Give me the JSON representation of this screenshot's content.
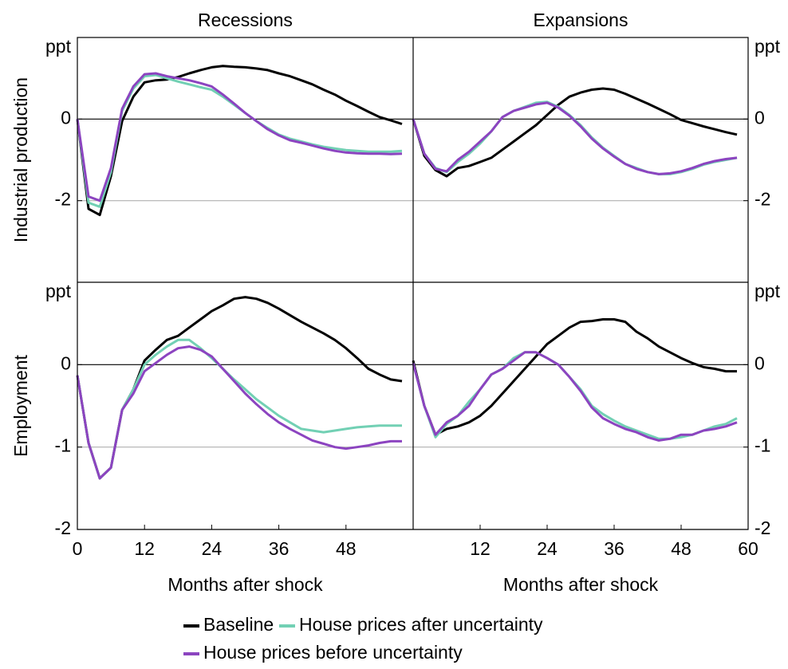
{
  "legend": [
    {
      "name": "Baseline",
      "color": "#000000"
    },
    {
      "name": "House prices after uncertainty",
      "color": "#72d0b4"
    },
    {
      "name": "House prices before uncertainty",
      "color": "#8c44c0"
    }
  ],
  "chart_data": [
    {
      "type": "line",
      "title": "Recessions",
      "ylabel": "Industrial production",
      "unit": "ppt",
      "x": [
        0,
        2,
        4,
        6,
        8,
        10,
        12,
        14,
        16,
        18,
        20,
        22,
        24,
        26,
        28,
        30,
        32,
        34,
        36,
        38,
        40,
        42,
        44,
        46,
        48,
        50,
        52,
        54,
        56,
        58
      ],
      "xlim": [
        0,
        60
      ],
      "ylim": [
        -4,
        2
      ],
      "yticks": [
        -2,
        0
      ],
      "series": [
        {
          "values": [
            0,
            -2.2,
            -2.35,
            -1.4,
            -0.05,
            0.55,
            0.9,
            0.95,
            0.97,
            1.03,
            1.12,
            1.2,
            1.27,
            1.3,
            1.28,
            1.27,
            1.24,
            1.2,
            1.12,
            1.05,
            0.95,
            0.85,
            0.72,
            0.6,
            0.45,
            0.32,
            0.18,
            0.05,
            -0.03,
            -0.12
          ]
        },
        {
          "values": [
            0,
            -2.05,
            -2.15,
            -1.3,
            0.2,
            0.75,
            1.05,
            1.08,
            1.0,
            0.92,
            0.85,
            0.78,
            0.72,
            0.55,
            0.35,
            0.15,
            -0.05,
            -0.22,
            -0.38,
            -0.48,
            -0.55,
            -0.62,
            -0.68,
            -0.72,
            -0.76,
            -0.78,
            -0.8,
            -0.8,
            -0.8,
            -0.78
          ]
        },
        {
          "values": [
            0,
            -1.9,
            -2.0,
            -1.2,
            0.25,
            0.8,
            1.1,
            1.12,
            1.05,
            1.0,
            0.95,
            0.88,
            0.8,
            0.6,
            0.38,
            0.15,
            -0.05,
            -0.25,
            -0.4,
            -0.52,
            -0.58,
            -0.65,
            -0.72,
            -0.78,
            -0.82,
            -0.84,
            -0.85,
            -0.85,
            -0.86,
            -0.85
          ]
        }
      ]
    },
    {
      "type": "line",
      "title": "Expansions",
      "unit": "ppt",
      "x": [
        0,
        2,
        4,
        6,
        8,
        10,
        12,
        14,
        16,
        18,
        20,
        22,
        24,
        26,
        28,
        30,
        32,
        34,
        36,
        38,
        40,
        42,
        44,
        46,
        48,
        50,
        52,
        54,
        56,
        58
      ],
      "xlim": [
        0,
        60
      ],
      "ylim": [
        -4,
        2
      ],
      "yticks": [
        -2,
        0
      ],
      "series": [
        {
          "values": [
            0,
            -0.9,
            -1.25,
            -1.4,
            -1.2,
            -1.15,
            -1.05,
            -0.95,
            -0.75,
            -0.55,
            -0.35,
            -0.15,
            0.1,
            0.35,
            0.55,
            0.65,
            0.72,
            0.75,
            0.72,
            0.62,
            0.5,
            0.38,
            0.25,
            0.12,
            -0.02,
            -0.1,
            -0.18,
            -0.25,
            -0.32,
            -0.38
          ]
        },
        {
          "values": [
            0,
            -0.85,
            -1.2,
            -1.3,
            -1.05,
            -0.85,
            -0.6,
            -0.3,
            0.05,
            0.2,
            0.3,
            0.4,
            0.42,
            0.3,
            0.1,
            -0.15,
            -0.45,
            -0.7,
            -0.9,
            -1.1,
            -1.2,
            -1.3,
            -1.35,
            -1.35,
            -1.3,
            -1.22,
            -1.12,
            -1.05,
            -1.0,
            -0.95
          ]
        },
        {
          "values": [
            0,
            -0.85,
            -1.22,
            -1.28,
            -1.0,
            -0.8,
            -0.55,
            -0.3,
            0.05,
            0.2,
            0.28,
            0.36,
            0.4,
            0.28,
            0.08,
            -0.18,
            -0.48,
            -0.72,
            -0.92,
            -1.1,
            -1.22,
            -1.3,
            -1.35,
            -1.33,
            -1.28,
            -1.2,
            -1.1,
            -1.03,
            -0.98,
            -0.95
          ]
        }
      ]
    },
    {
      "type": "line",
      "ylabel": "Employment",
      "unit": "ppt",
      "xlabel": "Months after shock",
      "x": [
        0,
        2,
        4,
        6,
        8,
        10,
        12,
        14,
        16,
        18,
        20,
        22,
        24,
        26,
        28,
        30,
        32,
        34,
        36,
        38,
        40,
        42,
        44,
        46,
        48,
        50,
        52,
        54,
        56,
        58
      ],
      "xlim": [
        0,
        60
      ],
      "xticks": [
        0,
        12,
        24,
        36,
        48
      ],
      "ylim": [
        -2,
        1
      ],
      "yticks": [
        -2,
        -1,
        0
      ],
      "series": [
        {
          "values": [
            -0.13,
            -0.95,
            -1.38,
            -1.25,
            -0.55,
            -0.3,
            0.05,
            0.18,
            0.3,
            0.35,
            0.45,
            0.55,
            0.65,
            0.72,
            0.8,
            0.82,
            0.8,
            0.75,
            0.68,
            0.6,
            0.52,
            0.45,
            0.38,
            0.3,
            0.2,
            0.08,
            -0.05,
            -0.12,
            -0.18,
            -0.2
          ]
        },
        {
          "values": [
            -0.13,
            -0.95,
            -1.38,
            -1.25,
            -0.55,
            -0.3,
            0.0,
            0.12,
            0.22,
            0.3,
            0.3,
            0.2,
            0.08,
            -0.05,
            -0.18,
            -0.3,
            -0.42,
            -0.52,
            -0.62,
            -0.7,
            -0.78,
            -0.8,
            -0.82,
            -0.8,
            -0.78,
            -0.76,
            -0.75,
            -0.74,
            -0.74,
            -0.74
          ]
        },
        {
          "values": [
            -0.13,
            -0.95,
            -1.38,
            -1.25,
            -0.55,
            -0.35,
            -0.08,
            0.02,
            0.12,
            0.2,
            0.22,
            0.18,
            0.1,
            -0.05,
            -0.2,
            -0.35,
            -0.48,
            -0.6,
            -0.7,
            -0.78,
            -0.85,
            -0.92,
            -0.96,
            -1.0,
            -1.02,
            -1.0,
            -0.98,
            -0.95,
            -0.93,
            -0.93
          ]
        }
      ]
    },
    {
      "type": "line",
      "unit": "ppt",
      "xlabel": "Months after shock",
      "x": [
        0,
        2,
        4,
        6,
        8,
        10,
        12,
        14,
        16,
        18,
        20,
        22,
        24,
        26,
        28,
        30,
        32,
        34,
        36,
        38,
        40,
        42,
        44,
        46,
        48,
        50,
        52,
        54,
        56,
        58
      ],
      "xlim": [
        0,
        60
      ],
      "xticks": [
        12,
        24,
        36,
        48,
        60
      ],
      "ylim": [
        -2,
        1
      ],
      "yticks": [
        -2,
        -1,
        0
      ],
      "series": [
        {
          "values": [
            0.05,
            -0.5,
            -0.85,
            -0.78,
            -0.75,
            -0.7,
            -0.62,
            -0.5,
            -0.35,
            -0.2,
            -0.05,
            0.1,
            0.25,
            0.35,
            0.45,
            0.52,
            0.53,
            0.55,
            0.55,
            0.52,
            0.4,
            0.32,
            0.22,
            0.15,
            0.08,
            0.02,
            -0.03,
            -0.05,
            -0.08,
            -0.08
          ]
        },
        {
          "values": [
            0.02,
            -0.5,
            -0.88,
            -0.72,
            -0.62,
            -0.45,
            -0.3,
            -0.12,
            -0.05,
            0.08,
            0.15,
            0.15,
            0.08,
            0.0,
            -0.15,
            -0.3,
            -0.5,
            -0.6,
            -0.68,
            -0.75,
            -0.8,
            -0.85,
            -0.9,
            -0.9,
            -0.88,
            -0.85,
            -0.8,
            -0.75,
            -0.72,
            -0.65
          ]
        },
        {
          "values": [
            0.02,
            -0.5,
            -0.85,
            -0.7,
            -0.62,
            -0.5,
            -0.3,
            -0.12,
            -0.05,
            0.05,
            0.15,
            0.15,
            0.08,
            0.0,
            -0.15,
            -0.32,
            -0.52,
            -0.65,
            -0.72,
            -0.78,
            -0.82,
            -0.88,
            -0.92,
            -0.9,
            -0.85,
            -0.85,
            -0.8,
            -0.78,
            -0.75,
            -0.7
          ]
        }
      ]
    }
  ]
}
